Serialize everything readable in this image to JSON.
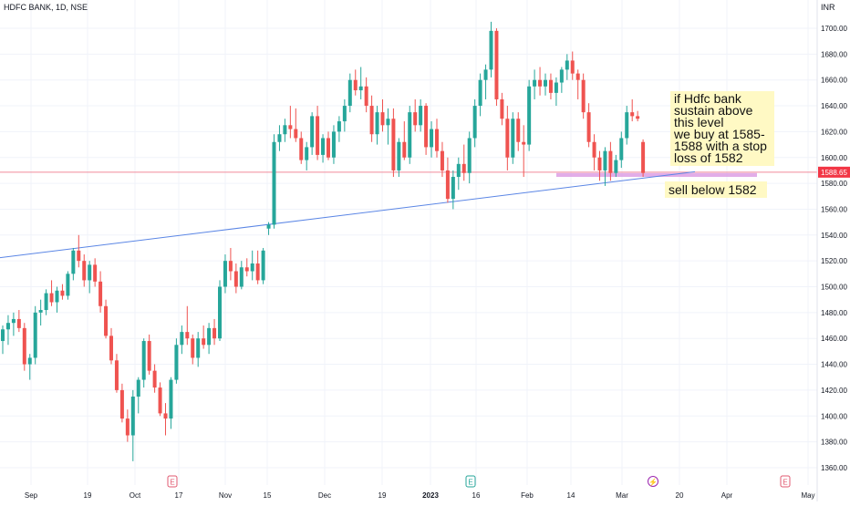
{
  "header": {
    "symbol": "HDFC BANK, 1D, NSE",
    "currency": "INR"
  },
  "price_badge": {
    "label": "1588.65",
    "color": "#f23645"
  },
  "annotations": {
    "note_buy": "if Hdfc bank sustain above this level\nwe buy at 1585-1588 with a stop loss of 1582",
    "note_sell": "sell below 1582"
  },
  "event_markers": [
    {
      "symbol": "E",
      "x": 189,
      "color": "#e05a70"
    },
    {
      "symbol": "E",
      "x": 516,
      "color": "#26a69a"
    },
    {
      "symbol": "⚡",
      "x": 716,
      "color": "#9c27b0"
    },
    {
      "symbol": "E",
      "x": 861,
      "color": "#e05a70"
    }
  ],
  "colors": {
    "up": "#26a69a",
    "down": "#ef5350",
    "trendline": "#5b86e5",
    "zone": "#d891e0",
    "level_line": "#f28b9b"
  },
  "chart_data": {
    "type": "candlestick",
    "y_axis": {
      "min": 1350,
      "max": 1710,
      "ticks": [
        1360,
        1380,
        1400,
        1420,
        1440,
        1460,
        1480,
        1500,
        1520,
        1540,
        1560,
        1580,
        1600,
        1620,
        1640,
        1660,
        1680,
        1700
      ]
    },
    "x_axis_labels": [
      "Sep",
      "19",
      "Oct",
      "17",
      "Nov",
      "15",
      "Dec",
      "19",
      "2023",
      "16",
      "Feb",
      "14",
      "Mar",
      "20",
      "Apr",
      "May"
    ],
    "horizontal_level": 1588.65,
    "support_zone": {
      "low": 1585,
      "high": 1588
    },
    "trendline": {
      "start": 1522.5,
      "end": 1589
    },
    "candles": [
      [
        1458,
        1470,
        1448,
        1467
      ],
      [
        1467,
        1478,
        1455,
        1472
      ],
      [
        1472,
        1480,
        1462,
        1475
      ],
      [
        1475,
        1482,
        1465,
        1468
      ],
      [
        1468,
        1472,
        1435,
        1440
      ],
      [
        1440,
        1448,
        1428,
        1445
      ],
      [
        1445,
        1485,
        1440,
        1480
      ],
      [
        1480,
        1490,
        1470,
        1482
      ],
      [
        1482,
        1498,
        1478,
        1495
      ],
      [
        1495,
        1505,
        1485,
        1488
      ],
      [
        1488,
        1500,
        1480,
        1497
      ],
      [
        1497,
        1502,
        1490,
        1493
      ],
      [
        1493,
        1512,
        1490,
        1510
      ],
      [
        1510,
        1530,
        1505,
        1528
      ],
      [
        1528,
        1540,
        1515,
        1520
      ],
      [
        1520,
        1525,
        1500,
        1505
      ],
      [
        1505,
        1520,
        1495,
        1517
      ],
      [
        1517,
        1522,
        1500,
        1504
      ],
      [
        1504,
        1512,
        1480,
        1485
      ],
      [
        1485,
        1490,
        1460,
        1462
      ],
      [
        1462,
        1468,
        1440,
        1443
      ],
      [
        1443,
        1448,
        1418,
        1420
      ],
      [
        1420,
        1425,
        1395,
        1398
      ],
      [
        1398,
        1405,
        1380,
        1385
      ],
      [
        1385,
        1420,
        1365,
        1415
      ],
      [
        1415,
        1430,
        1402,
        1428
      ],
      [
        1428,
        1460,
        1422,
        1458
      ],
      [
        1458,
        1463,
        1432,
        1435
      ],
      [
        1435,
        1440,
        1418,
        1422
      ],
      [
        1422,
        1426,
        1400,
        1402
      ],
      [
        1402,
        1410,
        1385,
        1398
      ],
      [
        1398,
        1430,
        1390,
        1428
      ],
      [
        1428,
        1460,
        1425,
        1455
      ],
      [
        1455,
        1470,
        1448,
        1465
      ],
      [
        1465,
        1485,
        1455,
        1460
      ],
      [
        1460,
        1463,
        1440,
        1445
      ],
      [
        1445,
        1465,
        1438,
        1460
      ],
      [
        1460,
        1470,
        1452,
        1455
      ],
      [
        1455,
        1472,
        1448,
        1468
      ],
      [
        1468,
        1475,
        1455,
        1460
      ],
      [
        1460,
        1505,
        1458,
        1500
      ],
      [
        1500,
        1525,
        1495,
        1520
      ],
      [
        1520,
        1530,
        1505,
        1512
      ],
      [
        1512,
        1518,
        1495,
        1500
      ],
      [
        1500,
        1520,
        1498,
        1515
      ],
      [
        1515,
        1522,
        1508,
        1512
      ],
      [
        1512,
        1528,
        1505,
        1518
      ],
      [
        1518,
        1528,
        1502,
        1505
      ],
      [
        1505,
        1530,
        1502,
        1528
      ],
      [
        1545,
        1550,
        1540,
        1548
      ],
      [
        1548,
        1618,
        1545,
        1612
      ],
      [
        1612,
        1625,
        1605,
        1618
      ],
      [
        1618,
        1630,
        1612,
        1625
      ],
      [
        1625,
        1640,
        1615,
        1622
      ],
      [
        1622,
        1638,
        1612,
        1615
      ],
      [
        1615,
        1620,
        1595,
        1598
      ],
      [
        1598,
        1612,
        1590,
        1608
      ],
      [
        1608,
        1635,
        1602,
        1632
      ],
      [
        1632,
        1640,
        1598,
        1602
      ],
      [
        1602,
        1618,
        1596,
        1615
      ],
      [
        1615,
        1620,
        1598,
        1600
      ],
      [
        1600,
        1625,
        1595,
        1620
      ],
      [
        1620,
        1632,
        1612,
        1628
      ],
      [
        1628,
        1645,
        1620,
        1640
      ],
      [
        1640,
        1665,
        1635,
        1660
      ],
      [
        1660,
        1668,
        1648,
        1652
      ],
      [
        1652,
        1670,
        1645,
        1655
      ],
      [
        1655,
        1662,
        1635,
        1640
      ],
      [
        1640,
        1648,
        1612,
        1618
      ],
      [
        1618,
        1640,
        1610,
        1635
      ],
      [
        1635,
        1645,
        1620,
        1625
      ],
      [
        1625,
        1638,
        1610,
        1630
      ],
      [
        1630,
        1638,
        1585,
        1590
      ],
      [
        1590,
        1615,
        1585,
        1612
      ],
      [
        1612,
        1628,
        1598,
        1600
      ],
      [
        1600,
        1640,
        1595,
        1635
      ],
      [
        1635,
        1645,
        1620,
        1625
      ],
      [
        1625,
        1645,
        1620,
        1640
      ],
      [
        1640,
        1642,
        1602,
        1608
      ],
      [
        1608,
        1628,
        1600,
        1622
      ],
      [
        1622,
        1630,
        1600,
        1605
      ],
      [
        1605,
        1612,
        1585,
        1590
      ],
      [
        1590,
        1600,
        1565,
        1568
      ],
      [
        1568,
        1590,
        1560,
        1585
      ],
      [
        1585,
        1600,
        1575,
        1595
      ],
      [
        1595,
        1610,
        1582,
        1588
      ],
      [
        1588,
        1620,
        1580,
        1615
      ],
      [
        1615,
        1645,
        1608,
        1640
      ],
      [
        1640,
        1665,
        1632,
        1660
      ],
      [
        1660,
        1672,
        1645,
        1668
      ],
      [
        1668,
        1705,
        1662,
        1698
      ],
      [
        1698,
        1700,
        1640,
        1645
      ],
      [
        1645,
        1650,
        1625,
        1630
      ],
      [
        1630,
        1640,
        1590,
        1600
      ],
      [
        1600,
        1635,
        1595,
        1630
      ],
      [
        1630,
        1635,
        1605,
        1612
      ],
      [
        1612,
        1625,
        1585,
        1610
      ],
      [
        1610,
        1660,
        1605,
        1655
      ],
      [
        1655,
        1668,
        1645,
        1660
      ],
      [
        1660,
        1670,
        1648,
        1655
      ],
      [
        1655,
        1665,
        1648,
        1660
      ],
      [
        1660,
        1665,
        1645,
        1650
      ],
      [
        1650,
        1662,
        1640,
        1658
      ],
      [
        1658,
        1670,
        1650,
        1668
      ],
      [
        1668,
        1680,
        1660,
        1675
      ],
      [
        1675,
        1682,
        1660,
        1665
      ],
      [
        1665,
        1668,
        1645,
        1660
      ],
      [
        1660,
        1665,
        1630,
        1635
      ],
      [
        1635,
        1642,
        1608,
        1612
      ],
      [
        1612,
        1618,
        1590,
        1600
      ],
      [
        1600,
        1605,
        1582,
        1590
      ],
      [
        1590,
        1608,
        1578,
        1605
      ],
      [
        1605,
        1612,
        1582,
        1588
      ],
      [
        1588,
        1602,
        1585,
        1598
      ],
      [
        1598,
        1620,
        1592,
        1615
      ],
      [
        1615,
        1640,
        1610,
        1635
      ],
      [
        1635,
        1645,
        1628,
        1632
      ],
      [
        1632,
        1636,
        1628,
        1630
      ],
      [
        1612,
        1614,
        1585,
        1588
      ]
    ]
  }
}
